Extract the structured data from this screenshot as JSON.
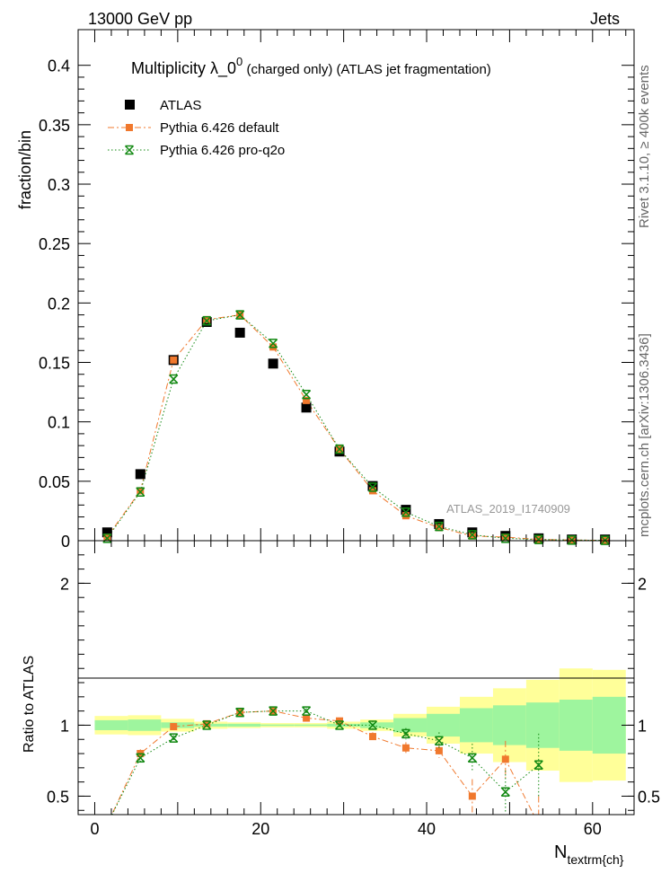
{
  "header": {
    "energy_label": "13000 GeV pp",
    "category_label": "Jets",
    "side_rivet": "Rivet 3.1.10, ≥ 400k events",
    "side_mcplots": "mcplots.cern.ch [arXiv:1306.3436]"
  },
  "colors": {
    "atlas": "#000000",
    "pythia_default": "#f0782d",
    "pythia_proq2o": "#118811",
    "band_green": "#9ef59e",
    "band_yellow": "#ffff99"
  },
  "chart_data": [
    {
      "type": "scatter",
      "title_main": "Multiplicity  λ_0",
      "title_sup": "0",
      "title_rest": " (charged only) (ATLAS jet fragmentation)",
      "ylabel": "fraction/bin",
      "xlabel": "",
      "xlim": [
        -2,
        65
      ],
      "ylim": [
        0,
        0.43
      ],
      "watermark": "ATLAS_2019_I1740909",
      "yticks": [
        {
          "value": 0,
          "label": "0"
        },
        {
          "value": 0.05,
          "label": "0.05"
        },
        {
          "value": 0.1,
          "label": "0.1"
        },
        {
          "value": 0.15,
          "label": "0.15"
        },
        {
          "value": 0.2,
          "label": "0.2"
        },
        {
          "value": 0.25,
          "label": "0.25"
        },
        {
          "value": 0.3,
          "label": "0.3"
        },
        {
          "value": 0.35,
          "label": "0.35"
        },
        {
          "value": 0.4,
          "label": "0.4"
        }
      ],
      "legend": [
        {
          "name": "ATLAS",
          "marker": "square",
          "line": "none"
        },
        {
          "name": "Pythia 6.426 default",
          "marker": "square-small",
          "line": "dashdot"
        },
        {
          "name": "Pythia 6.426 pro-q2o",
          "marker": "star",
          "line": "dotted"
        }
      ],
      "series": [
        {
          "name": "ATLAS",
          "x": [
            1.5,
            5.5,
            9.5,
            13.5,
            17.5,
            21.5,
            25.5,
            29.5,
            33.5,
            37.5,
            41.5,
            45.5,
            49.5,
            53.5,
            57.5,
            61.5
          ],
          "values": [
            0.007,
            0.056,
            0.152,
            0.184,
            0.175,
            0.149,
            0.112,
            0.075,
            0.046,
            0.026,
            0.014,
            0.007,
            0.004,
            0.002,
            0.001,
            0.001
          ]
        },
        {
          "name": "Pythia 6.426 default",
          "x": [
            1.5,
            5.5,
            9.5,
            13.5,
            17.5,
            21.5,
            25.5,
            29.5,
            33.5,
            37.5,
            41.5,
            45.5,
            49.5,
            53.5,
            57.5,
            61.5
          ],
          "values": [
            0.003,
            0.042,
            0.152,
            0.186,
            0.19,
            0.163,
            0.118,
            0.077,
            0.042,
            0.021,
            0.011,
            0.004,
            0.003,
            0.001,
            0.0005,
            0.0003
          ]
        },
        {
          "name": "Pythia 6.426 pro-q2o",
          "x": [
            1.5,
            5.5,
            9.5,
            13.5,
            17.5,
            21.5,
            25.5,
            29.5,
            33.5,
            37.5,
            41.5,
            45.5,
            49.5,
            53.5,
            57.5,
            61.5
          ],
          "values": [
            0.002,
            0.041,
            0.136,
            0.185,
            0.19,
            0.166,
            0.123,
            0.077,
            0.045,
            0.024,
            0.012,
            0.005,
            0.002,
            0.001,
            0.0005,
            0.0003
          ]
        }
      ]
    },
    {
      "type": "scatter",
      "ylabel": "Ratio to ATLAS",
      "xlabel": "N",
      "xlabel_sub": "textrm{ch}",
      "xlim": [
        -2,
        65
      ],
      "ylim": [
        0.37,
        2.3
      ],
      "xticks": [
        {
          "value": 0,
          "label": "0"
        },
        {
          "value": 20,
          "label": "20"
        },
        {
          "value": 40,
          "label": "40"
        },
        {
          "value": 60,
          "label": "60"
        }
      ],
      "yticks": [
        {
          "value": 0.5,
          "label": "0.5"
        },
        {
          "value": 1,
          "label": "1"
        },
        {
          "value": 2,
          "label": "2"
        }
      ],
      "bands": {
        "edges": [
          0,
          4,
          8,
          12,
          16,
          20,
          24,
          28,
          32,
          36,
          40,
          44,
          48,
          52,
          56,
          60,
          64
        ],
        "green_half_width": [
          0.035,
          0.04,
          0.02,
          0.01,
          0.01,
          0.005,
          0.005,
          0.01,
          0.02,
          0.05,
          0.08,
          0.12,
          0.14,
          0.16,
          0.18,
          0.2
        ],
        "yellow_half_width": [
          0.065,
          0.07,
          0.045,
          0.025,
          0.02,
          0.015,
          0.015,
          0.025,
          0.04,
          0.08,
          0.13,
          0.2,
          0.26,
          0.32,
          0.4,
          0.39
        ]
      },
      "series": [
        {
          "name": "Pythia 6.426 default",
          "x": [
            1.5,
            5.5,
            9.5,
            13.5,
            17.5,
            21.5,
            25.5,
            29.5,
            33.5,
            37.5,
            41.5,
            45.5,
            49.5,
            53.5
          ],
          "values": [
            0.3,
            0.8,
            0.99,
            1.01,
            1.09,
            1.1,
            1.05,
            1.03,
            0.92,
            0.84,
            0.82,
            0.5,
            0.76,
            0.3
          ],
          "errors": [
            0.05,
            0.03,
            0.02,
            0.01,
            0.01,
            0.01,
            0.02,
            0.02,
            0.03,
            0.04,
            0.05,
            0.12,
            0.13,
            0.2
          ]
        },
        {
          "name": "Pythia 6.426 pro-q2o",
          "x": [
            1.5,
            5.5,
            9.5,
            13.5,
            17.5,
            21.5,
            25.5,
            29.5,
            33.5,
            37.5,
            41.5,
            45.5,
            49.5,
            53.5
          ],
          "values": [
            0.3,
            0.77,
            0.91,
            1.0,
            1.09,
            1.1,
            1.1,
            1.0,
            1.0,
            0.94,
            0.89,
            0.77,
            0.53,
            0.72
          ],
          "errors": [
            0.05,
            0.03,
            0.02,
            0.01,
            0.01,
            0.01,
            0.02,
            0.02,
            0.03,
            0.04,
            0.06,
            0.1,
            0.15,
            0.22
          ]
        }
      ]
    }
  ]
}
